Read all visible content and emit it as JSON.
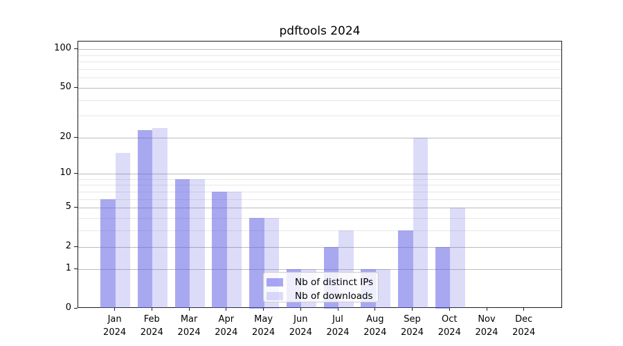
{
  "chart_data": {
    "type": "bar",
    "title": "pdftools 2024",
    "categories": [
      "Jan",
      "Feb",
      "Mar",
      "Apr",
      "May",
      "Jun",
      "Jul",
      "Aug",
      "Sep",
      "Oct",
      "Nov",
      "Dec"
    ],
    "year": "2024",
    "series": [
      {
        "name": "Nb of distinct IPs",
        "color": "rgba(88,88,229,0.52)",
        "values": [
          6,
          23,
          9,
          7,
          4,
          1,
          2,
          1,
          3,
          2,
          0,
          0
        ]
      },
      {
        "name": "Nb of downloads",
        "color": "rgba(88,88,229,0.21)",
        "values": [
          15,
          24,
          9,
          7,
          4,
          1,
          3,
          1,
          20,
          5,
          0,
          0
        ]
      }
    ],
    "y_axis": {
      "scale": "log1p",
      "major_ticks": [
        0,
        1,
        2,
        5,
        10,
        20,
        50,
        100
      ],
      "minor_gridlines": [
        3,
        4,
        6,
        7,
        8,
        9,
        30,
        40,
        60,
        70,
        80,
        90
      ],
      "major_grid_color": "#bcbcbc",
      "minor_grid_color": "#e7e7e7",
      "ymax": 115
    },
    "legend": {
      "position": "lower center",
      "entries": [
        "Nb of distinct IPs",
        "Nb of downloads"
      ]
    },
    "grid": "on"
  }
}
